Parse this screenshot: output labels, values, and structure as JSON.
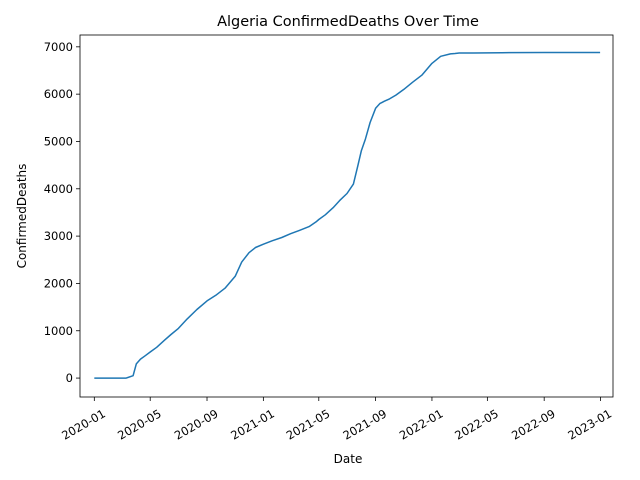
{
  "chart_data": {
    "type": "line",
    "title": "Algeria  ConfirmedDeaths Over Time",
    "xlabel": "Date",
    "ylabel": "ConfirmedDeaths",
    "x_ticks": [
      "2020-01",
      "2020-05",
      "2020-09",
      "2021-01",
      "2021-05",
      "2021-09",
      "2022-01",
      "2022-05",
      "2022-09",
      "2023-01"
    ],
    "y_ticks": [
      0,
      1000,
      2000,
      3000,
      4000,
      5000,
      6000,
      7000
    ],
    "xlim": [
      "2019-12-01",
      "2023-01-28"
    ],
    "ylim": [
      -400,
      7250
    ],
    "grid": false,
    "color": "#1f77b4",
    "series": [
      {
        "x": [
          "2020-01-01",
          "2020-02-01",
          "2020-03-01",
          "2020-03-10",
          "2020-03-25",
          "2020-04-01",
          "2020-04-10",
          "2020-04-20",
          "2020-05-01",
          "2020-05-15",
          "2020-06-01",
          "2020-06-15",
          "2020-07-01",
          "2020-07-20",
          "2020-08-10",
          "2020-09-01",
          "2020-09-20",
          "2020-10-10",
          "2020-11-01",
          "2020-11-15",
          "2020-12-01",
          "2020-12-15",
          "2021-01-01",
          "2021-01-20",
          "2021-02-10",
          "2021-03-01",
          "2021-03-20",
          "2021-04-10",
          "2021-04-25",
          "2021-05-01",
          "2021-05-15",
          "2021-06-01",
          "2021-06-15",
          "2021-07-01",
          "2021-07-15",
          "2021-07-25",
          "2021-08-01",
          "2021-08-10",
          "2021-08-20",
          "2021-09-01",
          "2021-09-10",
          "2021-09-20",
          "2021-10-01",
          "2021-10-15",
          "2021-11-01",
          "2021-11-20",
          "2021-12-10",
          "2022-01-01",
          "2022-01-20",
          "2022-02-10",
          "2022-02-20",
          "2022-03-01",
          "2022-03-15",
          "2022-04-01",
          "2022-06-01",
          "2022-09-01",
          "2022-12-31"
        ],
        "y": [
          0,
          0,
          0,
          0,
          50,
          300,
          400,
          470,
          550,
          650,
          800,
          920,
          1050,
          1250,
          1450,
          1630,
          1750,
          1900,
          2150,
          2450,
          2650,
          2760,
          2830,
          2900,
          2970,
          3050,
          3120,
          3200,
          3300,
          3350,
          3450,
          3600,
          3750,
          3900,
          4100,
          4500,
          4800,
          5050,
          5400,
          5700,
          5800,
          5850,
          5900,
          5980,
          6100,
          6250,
          6400,
          6650,
          6800,
          6850,
          6860,
          6870,
          6870,
          6870,
          6875,
          6880,
          6880
        ]
      }
    ]
  }
}
